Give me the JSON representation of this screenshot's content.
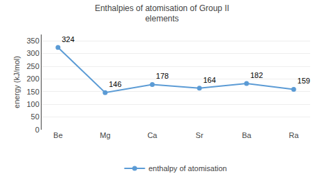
{
  "chart_data": {
    "type": "line",
    "title": "Enthalpies of atomisation of Group II\nelements",
    "ylabel": "energy (kJ/mol)",
    "categories": [
      "Be",
      "Mg",
      "Ca",
      "Sr",
      "Ba",
      "Ra"
    ],
    "series": [
      {
        "name": "enthalpy of atomisation",
        "color": "#5B9BD5",
        "values": [
          324,
          146,
          178,
          164,
          182,
          159
        ]
      }
    ],
    "marker": "circle",
    "ylim": [
      0,
      375
    ],
    "yticks": [
      0,
      50,
      100,
      150,
      200,
      250,
      300,
      350
    ],
    "grid": true,
    "data_labels": true,
    "legend": "bottom"
  }
}
